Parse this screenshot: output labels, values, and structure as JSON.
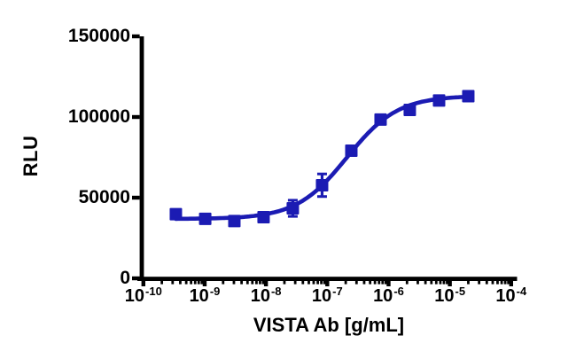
{
  "figure": {
    "background_color": "#ffffff",
    "axis_color": "#000000",
    "series_color": "#1b1bb3"
  },
  "axes": {
    "y": {
      "title": "RLU",
      "min": 0,
      "max": 150000,
      "ticks": [
        {
          "label": "0",
          "value": 0
        },
        {
          "label": "50000",
          "value": 50000
        },
        {
          "label": "100000",
          "value": 100000
        },
        {
          "label": "150000",
          "value": 150000
        }
      ]
    },
    "x": {
      "title": "VISTA Ab [g/mL]",
      "scale": "log10",
      "log_min": -10,
      "log_max": -4,
      "ticks": [
        {
          "base": "10",
          "exp": "-10",
          "log": -10
        },
        {
          "base": "10",
          "exp": "-9",
          "log": -9
        },
        {
          "base": "10",
          "exp": "-8",
          "log": -8
        },
        {
          "base": "10",
          "exp": "-7",
          "log": -7
        },
        {
          "base": "10",
          "exp": "-6",
          "log": -6
        },
        {
          "base": "10",
          "exp": "-5",
          "log": -5
        },
        {
          "base": "10",
          "exp": "-4",
          "log": -4
        }
      ]
    }
  },
  "chart_data": {
    "type": "scatter",
    "title": "",
    "xlabel": "VISTA Ab [g/mL]",
    "ylabel": "RLU",
    "x_scale": "log10",
    "xlim_log": [
      -10,
      -4
    ],
    "ylim": [
      0,
      150000
    ],
    "grid": false,
    "legend": false,
    "series": [
      {
        "name": "VISTA Ab",
        "marker": "square",
        "color": "#1b1bb3",
        "points": [
          {
            "conc_g_per_ml": 3.39e-10,
            "rlu": 39800,
            "error": 1200
          },
          {
            "conc_g_per_ml": 1.02e-09,
            "rlu": 36900,
            "error": 1200
          },
          {
            "conc_g_per_ml": 3.05e-09,
            "rlu": 35500,
            "error": 1200
          },
          {
            "conc_g_per_ml": 9.14e-09,
            "rlu": 37900,
            "error": 1500
          },
          {
            "conc_g_per_ml": 2.74e-08,
            "rlu": 43400,
            "error": 5000
          },
          {
            "conc_g_per_ml": 8.23e-08,
            "rlu": 57700,
            "error": 7000
          },
          {
            "conc_g_per_ml": 2.47e-07,
            "rlu": 79100,
            "error": 1800
          },
          {
            "conc_g_per_ml": 7.41e-07,
            "rlu": 98400,
            "error": 1800
          },
          {
            "conc_g_per_ml": 2.22e-06,
            "rlu": 104400,
            "error": 1800
          },
          {
            "conc_g_per_ml": 6.67e-06,
            "rlu": 110200,
            "error": 2800
          },
          {
            "conc_g_per_ml": 2e-05,
            "rlu": 112900,
            "error": 1500
          }
        ]
      }
    ],
    "fit_curve": {
      "model": "4PL",
      "bottom": 36800,
      "top": 113200,
      "ec50_g_per_ml": 2.1e-07,
      "hill": 1.05
    }
  }
}
